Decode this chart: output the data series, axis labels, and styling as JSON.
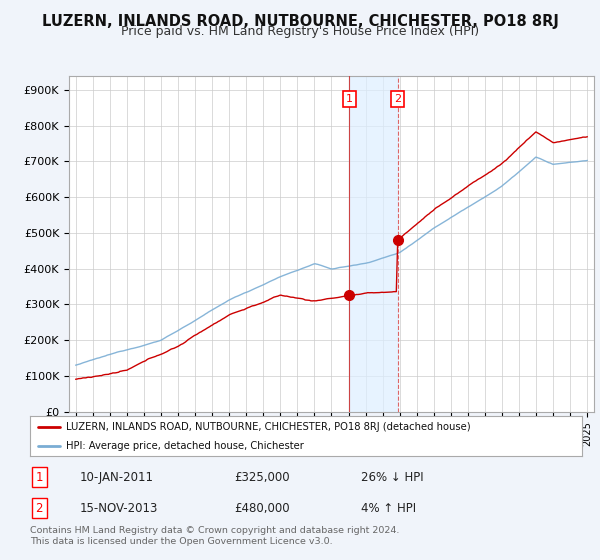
{
  "title": "LUZERN, INLANDS ROAD, NUTBOURNE, CHICHESTER, PO18 8RJ",
  "subtitle": "Price paid vs. HM Land Registry's House Price Index (HPI)",
  "ylabel_ticks": [
    "£0",
    "£100K",
    "£200K",
    "£300K",
    "£400K",
    "£500K",
    "£600K",
    "£700K",
    "£800K",
    "£900K"
  ],
  "ytick_values": [
    0,
    100000,
    200000,
    300000,
    400000,
    500000,
    600000,
    700000,
    800000,
    900000
  ],
  "ylim": [
    0,
    940000
  ],
  "xlim_start": 1994.6,
  "xlim_end": 2025.4,
  "red_color": "#cc0000",
  "blue_color": "#7aadd4",
  "shade_color": "#ddeeff",
  "vline1_color": "#cc4444",
  "vline2_color": "#dd6666",
  "background_color": "#f0f4fa",
  "plot_bg_color": "#ffffff",
  "grid_color": "#cccccc",
  "sale1_x": 2011.04,
  "sale1_y": 325000,
  "sale2_x": 2013.88,
  "sale2_y": 480000,
  "legend_line1": "LUZERN, INLANDS ROAD, NUTBOURNE, CHICHESTER, PO18 8RJ (detached house)",
  "legend_line2": "HPI: Average price, detached house, Chichester",
  "table_row1": [
    "1",
    "10-JAN-2011",
    "£325,000",
    "26% ↓ HPI"
  ],
  "table_row2": [
    "2",
    "15-NOV-2013",
    "£480,000",
    "4% ↑ HPI"
  ],
  "footer": "Contains HM Land Registry data © Crown copyright and database right 2024.\nThis data is licensed under the Open Government Licence v3.0."
}
